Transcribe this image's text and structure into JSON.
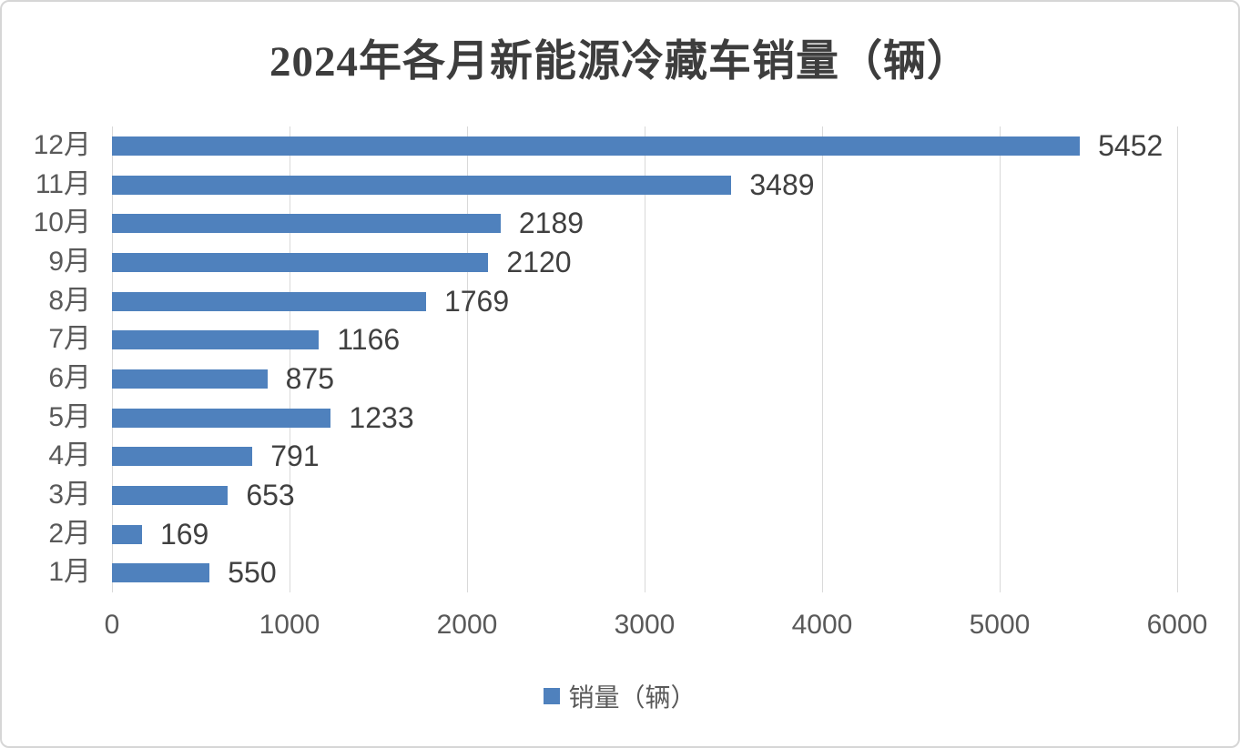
{
  "chart_data": {
    "type": "bar",
    "orientation": "horizontal",
    "title": "2024年各月新能源冷藏车销量（辆）",
    "legend": "销量（辆）",
    "categories": [
      "12月",
      "11月",
      "10月",
      "9月",
      "8月",
      "7月",
      "6月",
      "5月",
      "4月",
      "3月",
      "2月",
      "1月"
    ],
    "values": [
      5452,
      3489,
      2189,
      2120,
      1769,
      1166,
      875,
      1233,
      791,
      653,
      169,
      550
    ],
    "xlabel": "",
    "ylabel": "",
    "xlim": [
      0,
      6000
    ],
    "x_ticks": [
      0,
      1000,
      2000,
      3000,
      4000,
      5000,
      6000
    ],
    "grid": true,
    "grid_axis": "x",
    "legend_position": "bottom-center",
    "data_labels": true,
    "colors": {
      "bar": "#4f81bd",
      "gridline": "#d9d9d9",
      "axis_text": "#595959",
      "data_label_text": "#404040",
      "title_text": "#3d3d3d",
      "frame_border": "#d6d6d6",
      "background": "#ffffff"
    }
  }
}
